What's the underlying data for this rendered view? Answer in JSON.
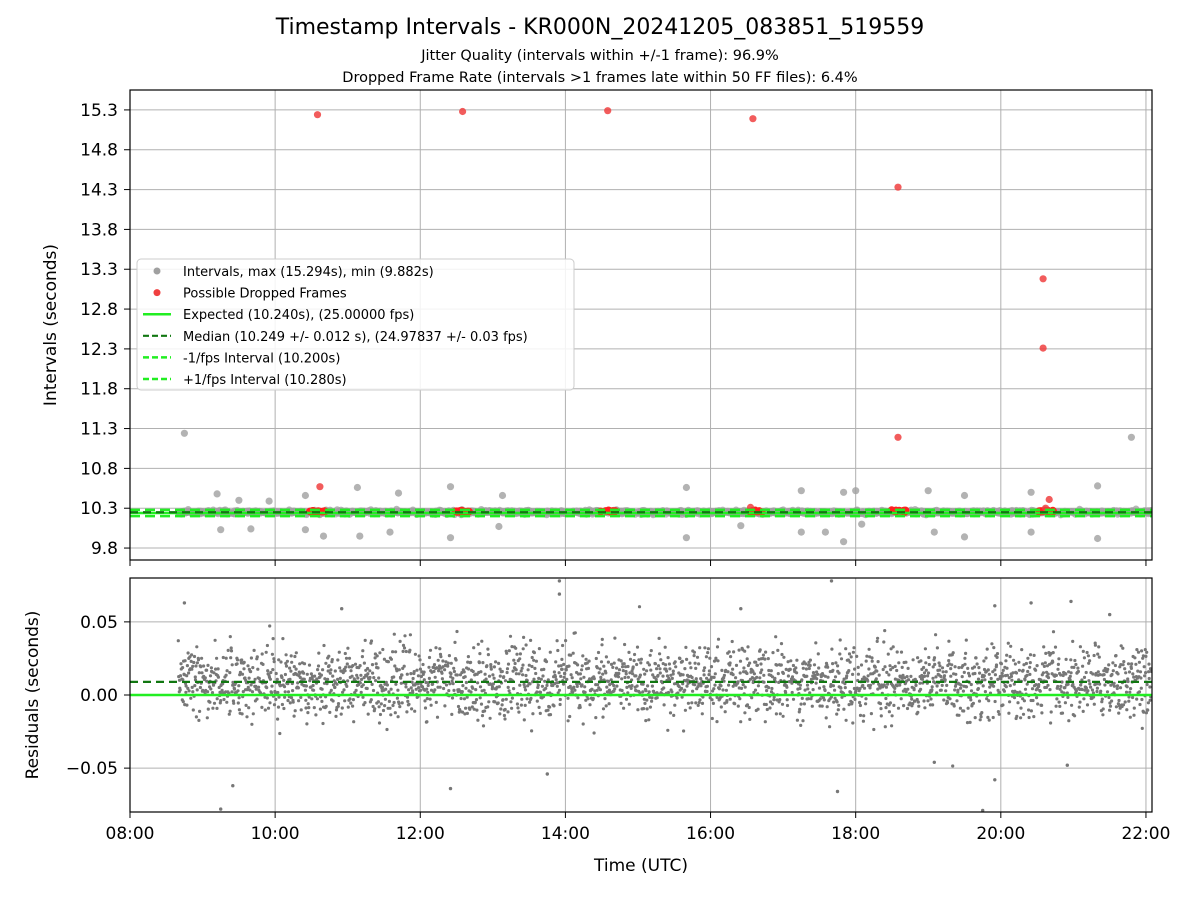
{
  "figure": {
    "title": "Timestamp Intervals - KR000N_20241205_083851_519559",
    "subtitle_1": "Jitter Quality (intervals within +/-1 frame): 96.9%",
    "subtitle_2": "Dropped Frame Rate (intervals >1 frames late within 50 FF files): 6.4%"
  },
  "colors": {
    "intervals": "#a0a0a0",
    "dropped": "#f04040",
    "expected": "#22ee22",
    "median": "#117711",
    "residuals": "#777777",
    "grid": "#b0b0b0"
  },
  "chart_data": [
    {
      "type": "scatter",
      "panel": "intervals",
      "ylabel": "Intervals (seconds)",
      "xlim": [
        "08:00",
        "22:05"
      ],
      "ylim": [
        9.65,
        15.55
      ],
      "yticks": [
        "9.8",
        "10.3",
        "10.8",
        "11.3",
        "11.8",
        "12.3",
        "12.8",
        "13.3",
        "13.8",
        "14.3",
        "14.8",
        "15.3"
      ],
      "grid": true,
      "legend_position": "center-left",
      "legend": [
        {
          "label": "Intervals, max (15.294s), min (9.882s)",
          "kind": "point-gray"
        },
        {
          "label": "Possible Dropped Frames",
          "kind": "point-red"
        },
        {
          "label": "Expected (10.240s), (25.00000 fps)",
          "kind": "line-expected"
        },
        {
          "label": "Median (10.249 +/- 0.012 s), (24.97837 +/- 0.03 fps)",
          "kind": "line-median"
        },
        {
          "label": "-1/fps Interval (10.200s)",
          "kind": "dash-lower"
        },
        {
          "label": "+1/fps Interval (10.280s)",
          "kind": "dash-upper"
        }
      ],
      "expected": 10.24,
      "median": 10.249,
      "lower_bound": 10.2,
      "upper_bound": 10.28,
      "series": [
        {
          "name": "Intervals, max (15.294s), min (9.882s)",
          "role": "intervals",
          "baseline": 10.249,
          "spread": 0.012
        },
        {
          "name": "Possible Dropped Frames",
          "role": "dropped",
          "points": [
            {
              "x": "10:35",
              "y": 15.24
            },
            {
              "x": "12:35",
              "y": 15.28
            },
            {
              "x": "14:35",
              "y": 15.29
            },
            {
              "x": "16:35",
              "y": 15.19
            },
            {
              "x": "18:35",
              "y": 14.33
            },
            {
              "x": "20:35",
              "y": 13.18
            },
            {
              "x": "20:35",
              "y": 12.31
            },
            {
              "x": "18:35",
              "y": 11.19
            },
            {
              "x": "10:37",
              "y": 10.57
            },
            {
              "x": "20:40",
              "y": 10.41
            },
            {
              "x": "16:33",
              "y": 10.31
            },
            {
              "x": "20:37",
              "y": 10.3
            }
          ],
          "clusters": [
            "10:35",
            "12:35",
            "14:35",
            "16:38",
            "18:35",
            "20:38"
          ]
        }
      ],
      "outliers": [
        {
          "x": "08:45",
          "y": 11.24
        },
        {
          "x": "21:48",
          "y": 11.19
        },
        {
          "x": "09:12",
          "y": 10.48
        },
        {
          "x": "09:30",
          "y": 10.4
        },
        {
          "x": "09:55",
          "y": 10.39
        },
        {
          "x": "10:25",
          "y": 10.46
        },
        {
          "x": "11:08",
          "y": 10.56
        },
        {
          "x": "11:42",
          "y": 10.49
        },
        {
          "x": "12:25",
          "y": 10.57
        },
        {
          "x": "13:08",
          "y": 10.46
        },
        {
          "x": "15:40",
          "y": 10.56
        },
        {
          "x": "17:15",
          "y": 10.52
        },
        {
          "x": "17:50",
          "y": 10.5
        },
        {
          "x": "18:00",
          "y": 10.52
        },
        {
          "x": "19:00",
          "y": 10.52
        },
        {
          "x": "19:30",
          "y": 10.46
        },
        {
          "x": "20:25",
          "y": 10.5
        },
        {
          "x": "21:20",
          "y": 10.58
        },
        {
          "x": "09:15",
          "y": 10.03
        },
        {
          "x": "09:40",
          "y": 10.04
        },
        {
          "x": "10:25",
          "y": 10.03
        },
        {
          "x": "10:40",
          "y": 9.95
        },
        {
          "x": "11:10",
          "y": 9.95
        },
        {
          "x": "11:35",
          "y": 10.0
        },
        {
          "x": "12:25",
          "y": 9.93
        },
        {
          "x": "13:05",
          "y": 10.07
        },
        {
          "x": "15:40",
          "y": 9.93
        },
        {
          "x": "16:25",
          "y": 10.08
        },
        {
          "x": "17:15",
          "y": 10.0
        },
        {
          "x": "17:35",
          "y": 10.0
        },
        {
          "x": "17:50",
          "y": 9.88
        },
        {
          "x": "18:05",
          "y": 10.1
        },
        {
          "x": "19:05",
          "y": 10.0
        },
        {
          "x": "19:30",
          "y": 9.94
        },
        {
          "x": "20:25",
          "y": 10.0
        },
        {
          "x": "21:20",
          "y": 9.92
        }
      ]
    },
    {
      "type": "scatter",
      "panel": "residuals",
      "ylabel": "Residuals (seconds)",
      "xlabel": "Time (UTC)",
      "xlim": [
        "08:00",
        "22:05"
      ],
      "ylim": [
        -0.08,
        0.08
      ],
      "yticks": [
        "0.05",
        "0.00",
        "−0.05"
      ],
      "xticks": [
        "08:00",
        "10:00",
        "12:00",
        "14:00",
        "16:00",
        "18:00",
        "20:00",
        "22:00"
      ],
      "grid": true,
      "zero_line": 0.0,
      "median_line": 0.009,
      "series": [
        {
          "name": "Residuals",
          "role": "residuals",
          "start": "08:40",
          "end": "22:05",
          "center": 0.009,
          "spread": 0.012
        }
      ],
      "outliers": [
        {
          "x": "08:45",
          "y": 0.063
        },
        {
          "x": "09:15",
          "y": -0.078
        },
        {
          "x": "09:25",
          "y": -0.062
        },
        {
          "x": "10:55",
          "y": 0.059
        },
        {
          "x": "12:25",
          "y": -0.064
        },
        {
          "x": "13:45",
          "y": -0.054
        },
        {
          "x": "13:55",
          "y": 0.069
        },
        {
          "x": "13:55",
          "y": 0.078
        },
        {
          "x": "16:25",
          "y": 0.059
        },
        {
          "x": "17:40",
          "y": 0.078
        },
        {
          "x": "17:45",
          "y": -0.066
        },
        {
          "x": "19:05",
          "y": -0.046
        },
        {
          "x": "19:45",
          "y": -0.079
        },
        {
          "x": "19:55",
          "y": -0.058
        },
        {
          "x": "19:55",
          "y": 0.061
        },
        {
          "x": "20:25",
          "y": 0.063
        },
        {
          "x": "20:58",
          "y": 0.064
        },
        {
          "x": "20:55",
          "y": -0.048
        },
        {
          "x": "21:30",
          "y": 0.055
        }
      ]
    }
  ]
}
